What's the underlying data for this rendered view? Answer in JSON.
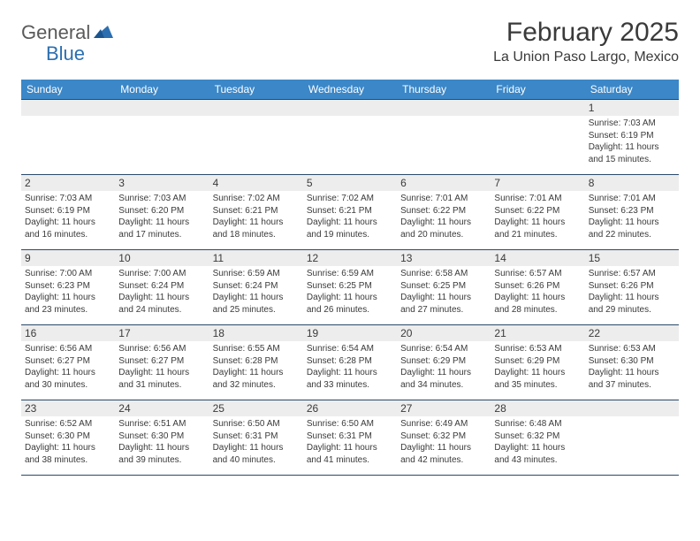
{
  "logo": {
    "part1": "General",
    "part2": "Blue"
  },
  "title": "February 2025",
  "location": "La Union Paso Largo, Mexico",
  "colors": {
    "header_bg": "#3b87c8",
    "header_text": "#ffffff",
    "daynum_bg": "#ededed",
    "rule": "#2a4a6a",
    "text": "#3a3a3a",
    "logo_blue": "#2b6fb0",
    "logo_gray": "#5a5a5a"
  },
  "weekdays": [
    "Sunday",
    "Monday",
    "Tuesday",
    "Wednesday",
    "Thursday",
    "Friday",
    "Saturday"
  ],
  "weeks": [
    {
      "nums": [
        "",
        "",
        "",
        "",
        "",
        "",
        "1"
      ],
      "cells": [
        {},
        {},
        {},
        {},
        {},
        {},
        {
          "sunrise": "7:03 AM",
          "sunset": "6:19 PM",
          "daylight": "11 hours and 15 minutes."
        }
      ]
    },
    {
      "nums": [
        "2",
        "3",
        "4",
        "5",
        "6",
        "7",
        "8"
      ],
      "cells": [
        {
          "sunrise": "7:03 AM",
          "sunset": "6:19 PM",
          "daylight": "11 hours and 16 minutes."
        },
        {
          "sunrise": "7:03 AM",
          "sunset": "6:20 PM",
          "daylight": "11 hours and 17 minutes."
        },
        {
          "sunrise": "7:02 AM",
          "sunset": "6:21 PM",
          "daylight": "11 hours and 18 minutes."
        },
        {
          "sunrise": "7:02 AM",
          "sunset": "6:21 PM",
          "daylight": "11 hours and 19 minutes."
        },
        {
          "sunrise": "7:01 AM",
          "sunset": "6:22 PM",
          "daylight": "11 hours and 20 minutes."
        },
        {
          "sunrise": "7:01 AM",
          "sunset": "6:22 PM",
          "daylight": "11 hours and 21 minutes."
        },
        {
          "sunrise": "7:01 AM",
          "sunset": "6:23 PM",
          "daylight": "11 hours and 22 minutes."
        }
      ]
    },
    {
      "nums": [
        "9",
        "10",
        "11",
        "12",
        "13",
        "14",
        "15"
      ],
      "cells": [
        {
          "sunrise": "7:00 AM",
          "sunset": "6:23 PM",
          "daylight": "11 hours and 23 minutes."
        },
        {
          "sunrise": "7:00 AM",
          "sunset": "6:24 PM",
          "daylight": "11 hours and 24 minutes."
        },
        {
          "sunrise": "6:59 AM",
          "sunset": "6:24 PM",
          "daylight": "11 hours and 25 minutes."
        },
        {
          "sunrise": "6:59 AM",
          "sunset": "6:25 PM",
          "daylight": "11 hours and 26 minutes."
        },
        {
          "sunrise": "6:58 AM",
          "sunset": "6:25 PM",
          "daylight": "11 hours and 27 minutes."
        },
        {
          "sunrise": "6:57 AM",
          "sunset": "6:26 PM",
          "daylight": "11 hours and 28 minutes."
        },
        {
          "sunrise": "6:57 AM",
          "sunset": "6:26 PM",
          "daylight": "11 hours and 29 minutes."
        }
      ]
    },
    {
      "nums": [
        "16",
        "17",
        "18",
        "19",
        "20",
        "21",
        "22"
      ],
      "cells": [
        {
          "sunrise": "6:56 AM",
          "sunset": "6:27 PM",
          "daylight": "11 hours and 30 minutes."
        },
        {
          "sunrise": "6:56 AM",
          "sunset": "6:27 PM",
          "daylight": "11 hours and 31 minutes."
        },
        {
          "sunrise": "6:55 AM",
          "sunset": "6:28 PM",
          "daylight": "11 hours and 32 minutes."
        },
        {
          "sunrise": "6:54 AM",
          "sunset": "6:28 PM",
          "daylight": "11 hours and 33 minutes."
        },
        {
          "sunrise": "6:54 AM",
          "sunset": "6:29 PM",
          "daylight": "11 hours and 34 minutes."
        },
        {
          "sunrise": "6:53 AM",
          "sunset": "6:29 PM",
          "daylight": "11 hours and 35 minutes."
        },
        {
          "sunrise": "6:53 AM",
          "sunset": "6:30 PM",
          "daylight": "11 hours and 37 minutes."
        }
      ]
    },
    {
      "nums": [
        "23",
        "24",
        "25",
        "26",
        "27",
        "28",
        ""
      ],
      "cells": [
        {
          "sunrise": "6:52 AM",
          "sunset": "6:30 PM",
          "daylight": "11 hours and 38 minutes."
        },
        {
          "sunrise": "6:51 AM",
          "sunset": "6:30 PM",
          "daylight": "11 hours and 39 minutes."
        },
        {
          "sunrise": "6:50 AM",
          "sunset": "6:31 PM",
          "daylight": "11 hours and 40 minutes."
        },
        {
          "sunrise": "6:50 AM",
          "sunset": "6:31 PM",
          "daylight": "11 hours and 41 minutes."
        },
        {
          "sunrise": "6:49 AM",
          "sunset": "6:32 PM",
          "daylight": "11 hours and 42 minutes."
        },
        {
          "sunrise": "6:48 AM",
          "sunset": "6:32 PM",
          "daylight": "11 hours and 43 minutes."
        },
        {}
      ]
    }
  ],
  "labels": {
    "sunrise": "Sunrise:",
    "sunset": "Sunset:",
    "daylight": "Daylight:"
  }
}
